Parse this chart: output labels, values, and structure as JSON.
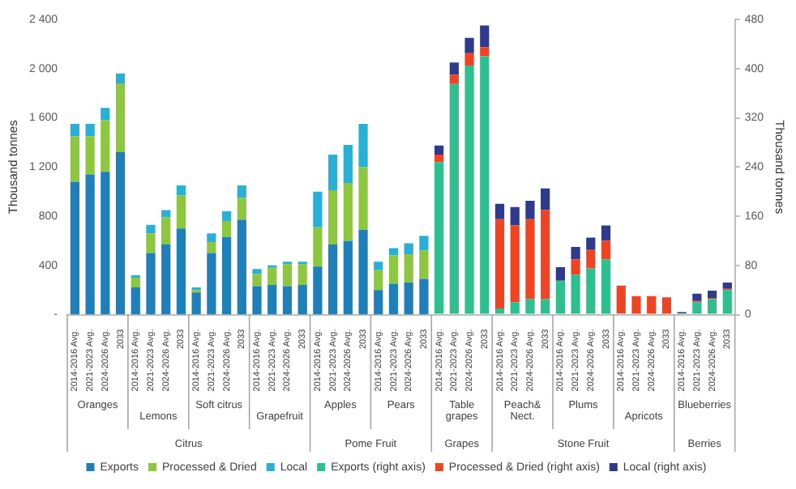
{
  "chart_data": {
    "type": "bar",
    "stacked": true,
    "ylabel": "Thousand tonnes",
    "y2label": "Thousand tonnes",
    "categories": [
      "2014-2016 Avg.",
      "2021-2023 Avg.",
      "2024-2026 Avg.",
      "2033",
      "2014-2016 Avg.",
      "2021-2023 Avg.",
      "2024-2026 Avg.",
      "2033",
      "2014-2016 Avg.",
      "2021-2023 Avg.",
      "2024-2026 Avg.",
      "2033",
      "2014-2016 Avg.",
      "2021-2023 Avg.",
      "2024-2026 Avg.",
      "2033",
      "2014-2016 Avg.",
      "2021-2023 Avg.",
      "2024-2026 Avg.",
      "2033",
      "2014-2016 Avg.",
      "2021-2023 Avg.",
      "2024-2026 Avg.",
      "2033",
      "2014-2016 Avg.",
      "2021-2023 Avg.",
      "2024-2026 Avg.",
      "2033",
      "2014-2016 Avg.",
      "2021-2023 Avg.",
      "2024-2026 Avg.",
      "2033",
      "2014-2016 Avg.",
      "2021-2023 Avg.",
      "2024-2026 Avg.",
      "2033",
      "2014-2016 Avg.",
      "2021-2023 Avg.",
      "2024-2026 Avg.",
      "2033",
      "2014-2016 Avg.",
      "2021-2023 Avg.",
      "2024-2026 Avg.",
      "2033"
    ],
    "series": [
      {
        "name": "Exports",
        "color": "#1f7fb8",
        "values": [
          1080,
          1140,
          1160,
          1320,
          220,
          500,
          570,
          700,
          180,
          500,
          630,
          770,
          230,
          240,
          230,
          240,
          390,
          570,
          600,
          690,
          200,
          250,
          260,
          290,
          null,
          null,
          null,
          null,
          null,
          null,
          null,
          null,
          null,
          null,
          null,
          null,
          null,
          null,
          null,
          null,
          null,
          null,
          null,
          null
        ]
      },
      {
        "name": "Processed & Dried",
        "color": "#8dc63f",
        "values": [
          370,
          310,
          420,
          560,
          80,
          160,
          220,
          270,
          20,
          90,
          130,
          180,
          100,
          140,
          180,
          170,
          320,
          440,
          470,
          510,
          160,
          230,
          230,
          230,
          null,
          null,
          null,
          null,
          null,
          null,
          null,
          null,
          null,
          null,
          null,
          null,
          null,
          null,
          null,
          null,
          null,
          null,
          null,
          null
        ]
      },
      {
        "name": "Local",
        "color": "#29b0d6",
        "values": [
          100,
          100,
          100,
          80,
          20,
          70,
          60,
          80,
          20,
          70,
          80,
          100,
          40,
          20,
          20,
          20,
          290,
          290,
          310,
          350,
          70,
          60,
          90,
          120,
          null,
          null,
          null,
          null,
          null,
          null,
          null,
          null,
          null,
          null,
          null,
          null,
          null,
          null,
          null,
          null,
          null,
          null,
          null,
          null
        ]
      },
      {
        "name": "Exports (right axis)",
        "color": "#2fbf8f",
        "axis": "y2",
        "values": [
          null,
          null,
          null,
          null,
          null,
          null,
          null,
          null,
          null,
          null,
          null,
          null,
          null,
          null,
          null,
          null,
          null,
          null,
          null,
          null,
          null,
          null,
          null,
          null,
          248,
          375,
          405,
          420,
          10,
          20,
          25,
          25,
          55,
          65,
          75,
          90,
          2,
          0,
          0,
          0,
          2,
          20,
          25,
          40
        ]
      },
      {
        "name": "Processed & Dried (right axis)",
        "color": "#ee4424",
        "axis": "y2",
        "values": [
          null,
          null,
          null,
          null,
          null,
          null,
          null,
          null,
          null,
          null,
          null,
          null,
          null,
          null,
          null,
          null,
          null,
          null,
          null,
          null,
          null,
          null,
          null,
          null,
          12,
          15,
          20,
          15,
          145,
          125,
          130,
          145,
          0,
          25,
          30,
          30,
          45,
          30,
          30,
          28,
          0,
          2,
          2,
          2
        ]
      },
      {
        "name": "Local (right axis)",
        "color": "#2e3a8c",
        "axis": "y2",
        "values": [
          null,
          null,
          null,
          null,
          null,
          null,
          null,
          null,
          null,
          null,
          null,
          null,
          null,
          null,
          null,
          null,
          null,
          null,
          null,
          null,
          null,
          null,
          null,
          null,
          15,
          20,
          25,
          35,
          25,
          30,
          30,
          35,
          22,
          20,
          20,
          25,
          0,
          0,
          0,
          0,
          2,
          12,
          12,
          10
        ]
      }
    ],
    "ylim": [
      0,
      2400
    ],
    "yticks": [
      {
        "value": 0,
        "label": "-"
      },
      400,
      800,
      {
        "value": 1200,
        "label": "1 200"
      },
      {
        "value": 1600,
        "label": "1 600"
      },
      {
        "value": 2000,
        "label": "2 000"
      },
      {
        "value": 2400,
        "label": "2 400"
      }
    ],
    "y2lim": [
      0,
      480
    ],
    "y2ticks": [
      0,
      80,
      160,
      240,
      320,
      400,
      480
    ],
    "legend": "bottom",
    "annotations": [
      "Oranges",
      "Lemons",
      "Soft citrus",
      "Grapefruit",
      "Apples",
      "Pears",
      "Table grapes",
      "Peach& Nect.",
      "Plums",
      "Apricots",
      "Blueberries",
      "Citrus",
      "Pome Fruit",
      "Grapes",
      "Stone Fruit",
      "Berries"
    ]
  }
}
